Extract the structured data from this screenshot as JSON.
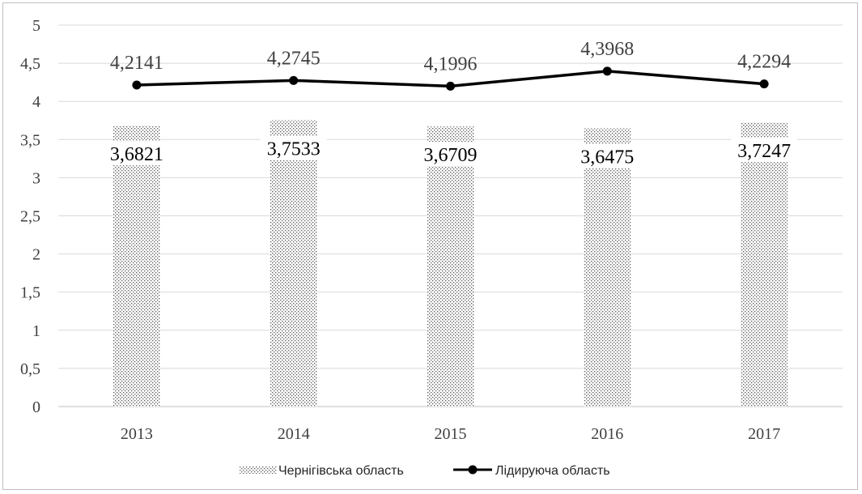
{
  "chart_data": {
    "type": "bar",
    "categories": [
      "2013",
      "2014",
      "2015",
      "2016",
      "2017"
    ],
    "ylim": [
      0,
      5
    ],
    "yticks": [
      "0",
      "0,5",
      "1",
      "1,5",
      "2",
      "2,5",
      "3",
      "3,5",
      "4",
      "4,5",
      "5"
    ],
    "grid": true,
    "legend_position": "bottom",
    "series": [
      {
        "name": "Чернігівська область",
        "type": "bar",
        "pattern": "dotted-hatch",
        "values": [
          3.6821,
          3.7533,
          3.6709,
          3.6475,
          3.7247
        ],
        "labels": [
          "3,6821",
          "3,7533",
          "3,6709",
          "3,6475",
          "3,7247"
        ]
      },
      {
        "name": "Лідируюча область",
        "type": "line",
        "color": "#000000",
        "values": [
          4.2141,
          4.2745,
          4.1996,
          4.3968,
          4.2294
        ],
        "labels": [
          "4,2141",
          "4,2745",
          "4,1996",
          "4,3968",
          "4,2294"
        ]
      }
    ]
  }
}
